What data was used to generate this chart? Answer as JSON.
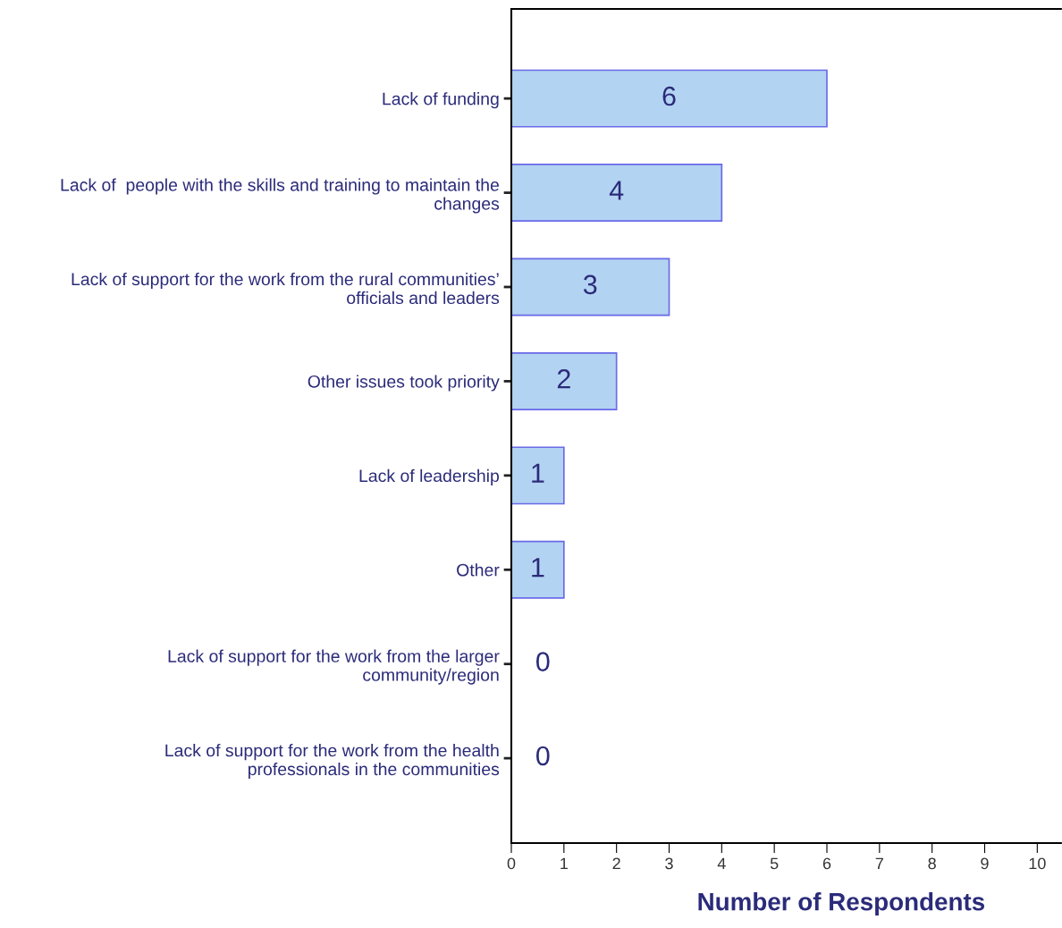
{
  "chart_data": {
    "type": "bar",
    "orientation": "horizontal",
    "xlabel": "Number of Respondents",
    "categories": [
      "Lack of funding",
      "Lack of  people with the skills and training to maintain the\nchanges",
      "Lack of support for the work from the rural communities’\nofficials and leaders",
      "Other issues took priority",
      "Lack of leadership",
      "Other",
      "Lack of support for the work from the larger\ncommunity/region",
      "Lack of support for the work from the health\nprofessionals in the communities"
    ],
    "values": [
      6,
      4,
      3,
      2,
      1,
      1,
      0,
      0
    ],
    "color": "#b3d3f2",
    "xlim": [
      0,
      10.45
    ],
    "xticks": [
      0,
      1,
      2,
      3,
      4,
      5,
      6,
      7,
      8,
      9,
      10
    ],
    "grid": false,
    "data_labels": true
  }
}
